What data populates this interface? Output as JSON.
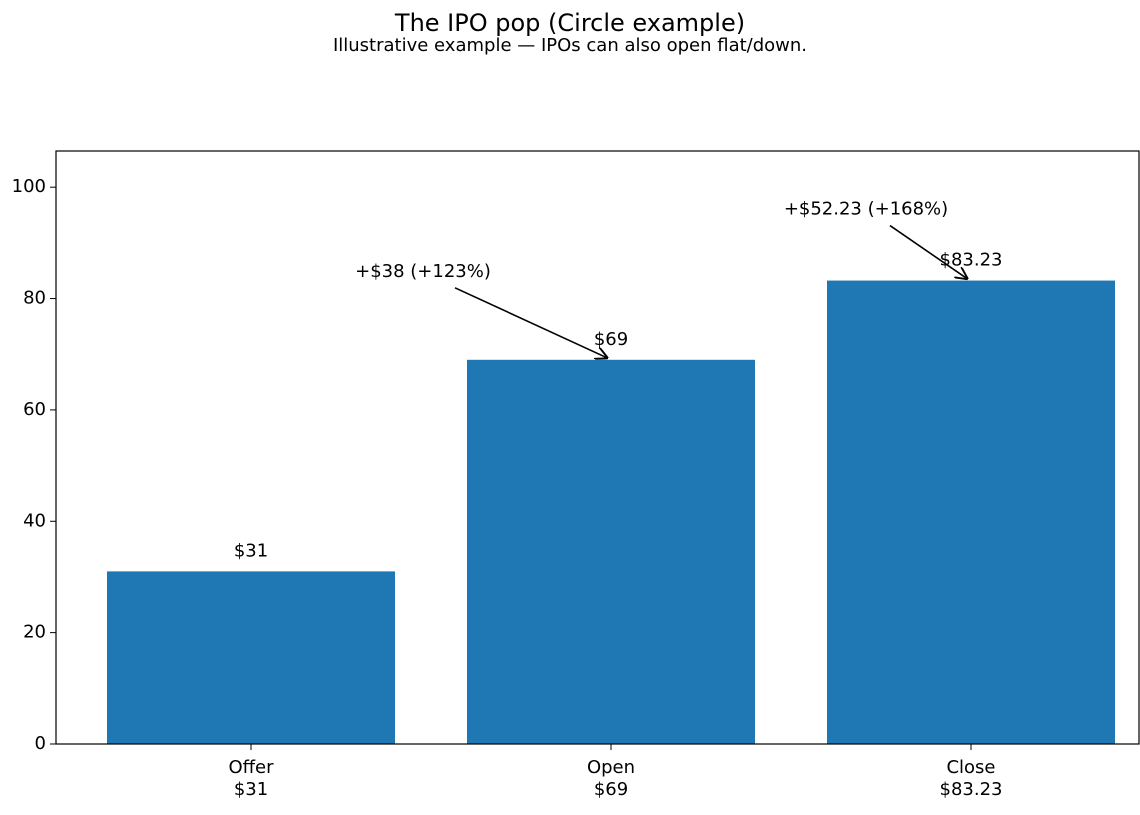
{
  "chart_data": {
    "type": "bar",
    "title": "The IPO pop (Circle example)",
    "subtitle": "Illustrative example — IPOs can also open flat/down.",
    "categories": [
      "Offer",
      "Open",
      "Close"
    ],
    "values": [
      31,
      69,
      83.23
    ],
    "value_labels": [
      "$31",
      "$69",
      "$83.23"
    ],
    "color": "#1f77b4",
    "ylim": [
      0,
      106.5
    ],
    "yticks": [
      0,
      20,
      40,
      60,
      80,
      100
    ],
    "grid": false,
    "annotations": [
      "+$38 (+123%)",
      "+$52.23 (+168%)"
    ]
  }
}
